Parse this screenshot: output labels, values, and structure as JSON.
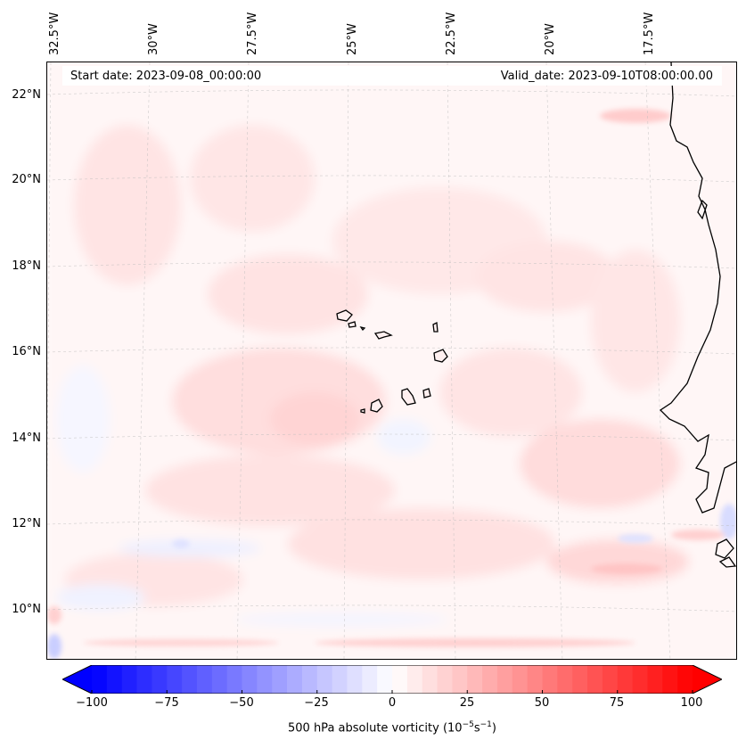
{
  "map": {
    "start_date": "Start date: 2023-09-08_00:00:00",
    "valid_date": "Valid_date: 2023-09-10T08:00:00.00",
    "longitude_labels": [
      "32.5°W",
      "30°W",
      "27.5°W",
      "25°W",
      "22.5°W",
      "20°W",
      "17.5°W"
    ],
    "latitude_labels": [
      "22°N",
      "20°N",
      "18°N",
      "16°N",
      "14°N",
      "12°N",
      "10°N"
    ]
  },
  "colorbar": {
    "ticks": [
      "−100",
      "−75",
      "−50",
      "−25",
      "0",
      "25",
      "50",
      "75",
      "100"
    ],
    "label_prefix": "500 hPa absolute vorticity (10",
    "label_exp1": "−5",
    "label_mid": "s",
    "label_exp2": "−1",
    "label_suffix": ")",
    "min": -100,
    "max": 100,
    "levels": 40,
    "colors": {
      "negative": "#0000ff",
      "zero": "#ffffff",
      "positive": "#ff0000"
    }
  }
}
